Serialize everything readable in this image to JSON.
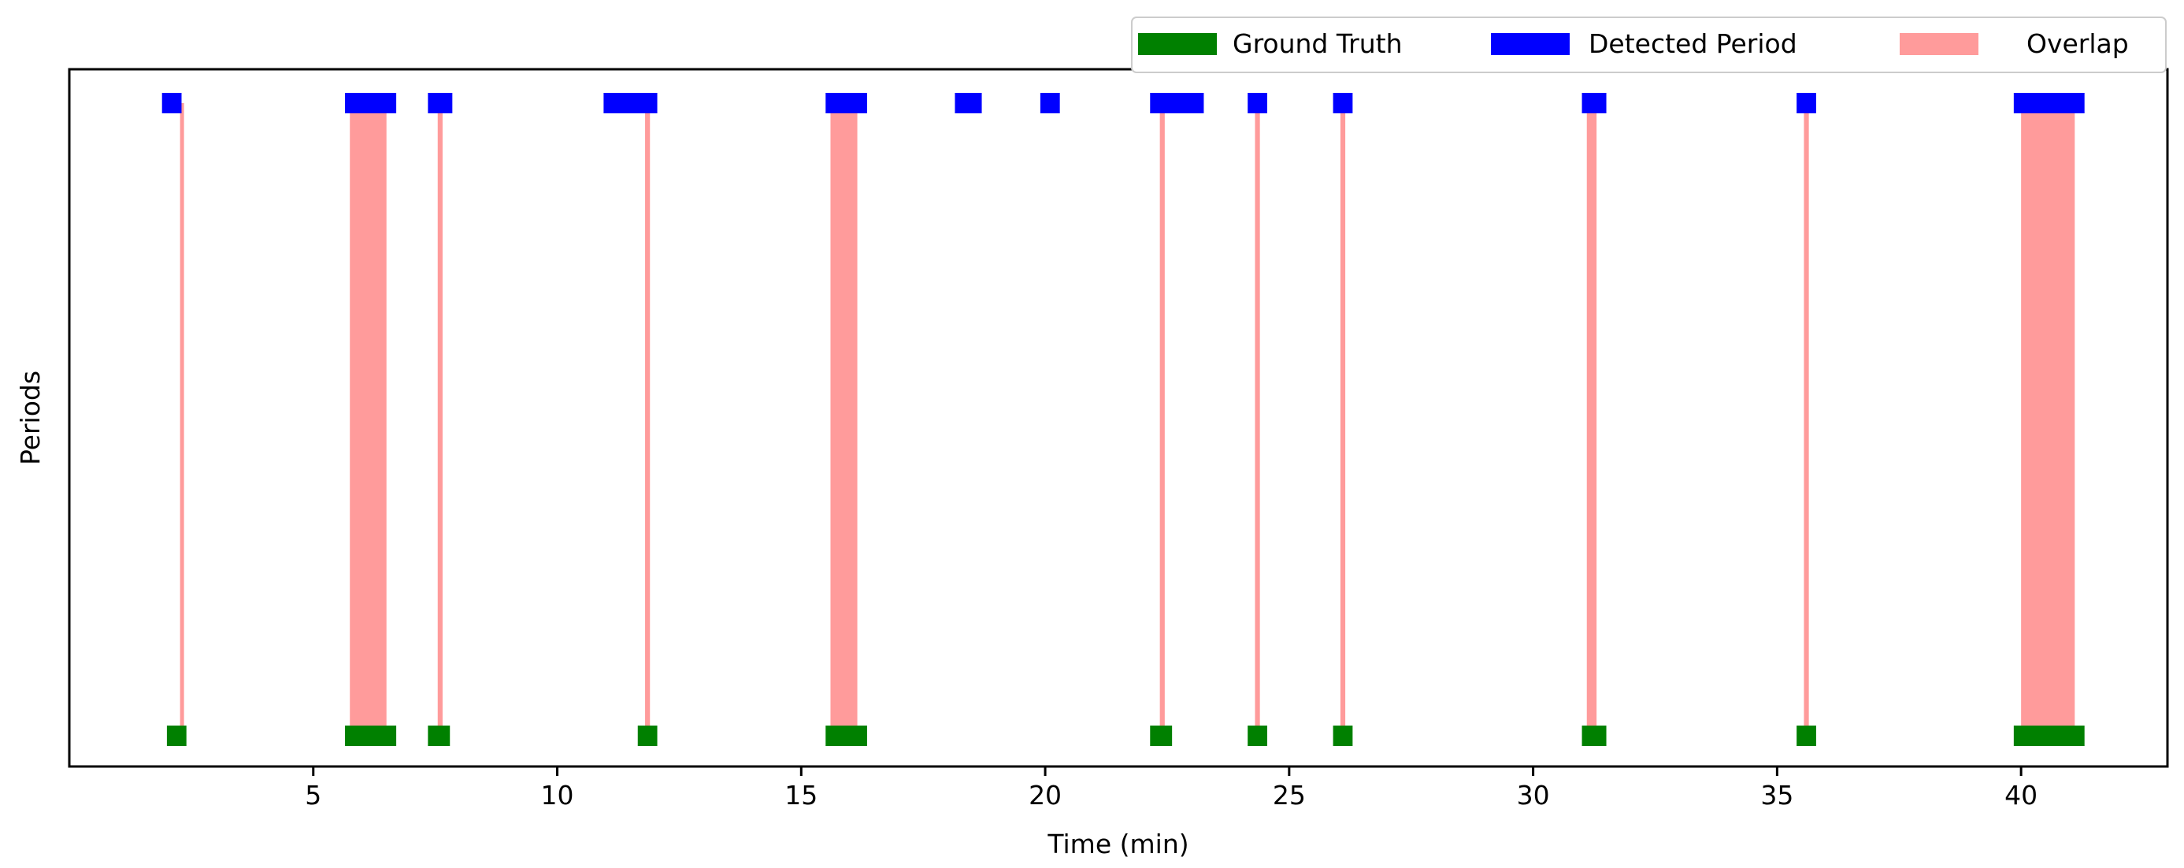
{
  "chart_data": {
    "type": "timeline",
    "xlabel": "Time (min)",
    "ylabel": "Periods",
    "xlim": [
      0.0,
      43.0
    ],
    "xticks": [
      5,
      10,
      15,
      20,
      25,
      30,
      35,
      40
    ],
    "xtick_labels": [
      "5",
      "10",
      "15",
      "20",
      "25",
      "30",
      "35",
      "40"
    ],
    "yticks": [],
    "grid": false,
    "legend": {
      "placement": "top-right, above plot",
      "entries": [
        "Ground Truth",
        "Detected Period",
        "Overlap"
      ]
    },
    "colors": {
      "ground_truth": "#008000",
      "detected": "#0000ff",
      "overlap": "#ff9b9b"
    },
    "series": [
      {
        "name": "Ground Truth",
        "row": "bottom",
        "periods": [
          [
            2.0,
            2.4
          ],
          [
            5.65,
            6.7
          ],
          [
            7.35,
            7.8
          ],
          [
            11.65,
            12.05
          ],
          [
            15.5,
            16.35
          ],
          [
            22.15,
            22.6
          ],
          [
            24.15,
            24.55
          ],
          [
            25.9,
            26.3
          ],
          [
            31.0,
            31.5
          ],
          [
            35.4,
            35.8
          ],
          [
            39.85,
            41.3
          ]
        ]
      },
      {
        "name": "Detected Period",
        "row": "top",
        "periods": [
          [
            1.9,
            2.3
          ],
          [
            5.65,
            6.7
          ],
          [
            7.35,
            7.85
          ],
          [
            10.95,
            12.05
          ],
          [
            15.5,
            16.35
          ],
          [
            18.15,
            18.7
          ],
          [
            19.9,
            20.3
          ],
          [
            22.15,
            23.25
          ],
          [
            24.15,
            24.55
          ],
          [
            25.9,
            26.3
          ],
          [
            31.0,
            31.5
          ],
          [
            35.4,
            35.8
          ],
          [
            39.85,
            41.3
          ]
        ]
      },
      {
        "name": "Overlap",
        "periods": [
          [
            2.27,
            2.33
          ],
          [
            5.75,
            6.5
          ],
          [
            7.55,
            7.65
          ],
          [
            11.8,
            11.9
          ],
          [
            15.6,
            16.15
          ],
          [
            22.35,
            22.45
          ],
          [
            24.3,
            24.4
          ],
          [
            26.05,
            26.15
          ],
          [
            31.1,
            31.3
          ],
          [
            35.55,
            35.65
          ],
          [
            40.0,
            41.1
          ]
        ]
      }
    ]
  }
}
